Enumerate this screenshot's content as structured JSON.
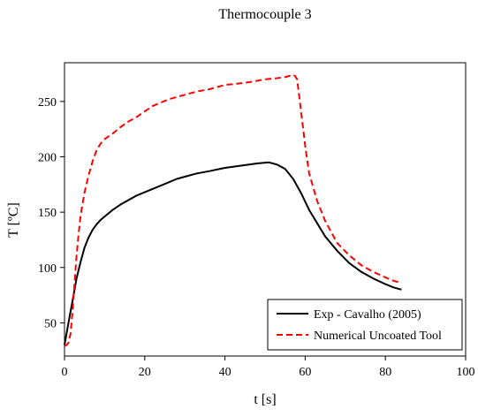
{
  "chart_data": {
    "type": "line",
    "title": "Thermocouple 3",
    "xlabel": "t [s]",
    "ylabel": "T [ºC]",
    "xlim": [
      0,
      100
    ],
    "ylim": [
      20,
      285
    ],
    "xticks": [
      0,
      20,
      40,
      60,
      80,
      100
    ],
    "yticks": [
      50,
      100,
      150,
      200,
      250
    ],
    "grid": false,
    "legend_position": "bottom-right",
    "series": [
      {
        "name": "Exp - Cavalho (2005)",
        "color": "#000000",
        "dash": "solid",
        "x": [
          0,
          1,
          2,
          3,
          4,
          5,
          6,
          7,
          8,
          9,
          10,
          12,
          14,
          16,
          18,
          20,
          22,
          24,
          26,
          28,
          30,
          33,
          36,
          40,
          44,
          48,
          51,
          53,
          55,
          57,
          59,
          61,
          63,
          65,
          68,
          71,
          74,
          77,
          80,
          82,
          84
        ],
        "y": [
          30,
          50,
          70,
          90,
          105,
          118,
          127,
          134,
          139,
          143,
          146,
          152,
          157,
          161,
          165,
          168,
          171,
          174,
          177,
          180,
          182,
          185,
          187,
          190,
          192,
          194,
          195,
          193,
          189,
          180,
          167,
          152,
          140,
          128,
          115,
          104,
          96,
          90,
          85,
          82,
          80
        ]
      },
      {
        "name": "Numerical Uncoated Tool",
        "color": "#ff0000",
        "dash": "dashed",
        "x": [
          0,
          0.5,
          1,
          1.5,
          2,
          2.5,
          3,
          3.5,
          4,
          5,
          6,
          7,
          8,
          9,
          10,
          12,
          14,
          16,
          18,
          20,
          22,
          24,
          26,
          28,
          30,
          33,
          36,
          38,
          40,
          43,
          45,
          47,
          50,
          53,
          55,
          56,
          57,
          57.5,
          58,
          58.5,
          59,
          60,
          61,
          63,
          65,
          68,
          71,
          74,
          77,
          80,
          82,
          84
        ],
        "y": [
          29,
          30,
          32,
          40,
          60,
          85,
          110,
          130,
          147,
          168,
          183,
          196,
          206,
          212,
          216,
          221,
          227,
          232,
          236,
          241,
          246,
          249,
          252,
          254,
          256,
          259,
          261,
          263,
          265,
          266,
          267,
          268,
          270,
          271,
          272,
          273,
          274,
          273,
          270,
          255,
          240,
          210,
          185,
          160,
          142,
          122,
          111,
          102,
          96,
          91,
          88,
          86
        ]
      }
    ]
  }
}
